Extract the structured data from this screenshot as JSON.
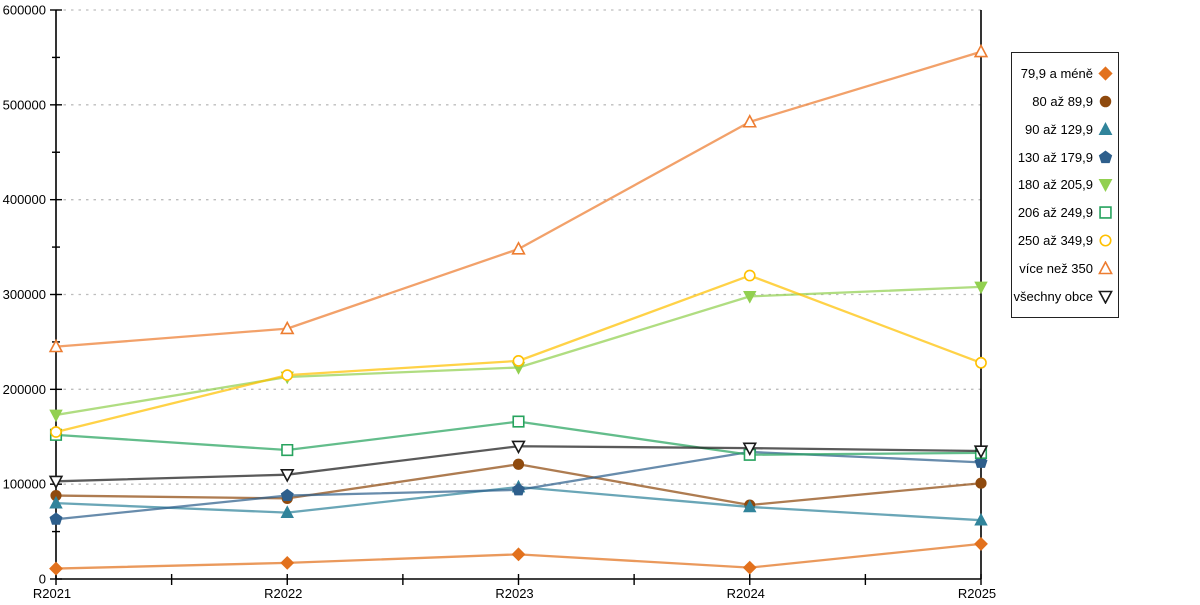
{
  "chart_data": {
    "type": "line",
    "title": "",
    "xlabel": "",
    "ylabel": "",
    "categories": [
      "R2021",
      "R2022",
      "R2023",
      "R2024",
      "R2025"
    ],
    "series": [
      {
        "name": "79,9 a méně",
        "marker": "diamond",
        "filled": true,
        "color": "#E2711D",
        "values": [
          11000,
          17000,
          26000,
          12000,
          37000
        ]
      },
      {
        "name": "80 až 89,9",
        "marker": "circle",
        "filled": true,
        "color": "#8F4A0E",
        "values": [
          88000,
          85000,
          121000,
          78000,
          101000
        ]
      },
      {
        "name": "90 až 129,9",
        "marker": "triangle-up",
        "filled": true,
        "color": "#31849B",
        "values": [
          80000,
          70000,
          97000,
          76000,
          62000
        ]
      },
      {
        "name": "130 až 179,9",
        "marker": "pentagon",
        "filled": true,
        "color": "#2E5F8C",
        "values": [
          63000,
          88000,
          94000,
          134000,
          123000
        ]
      },
      {
        "name": "180 až 205,9",
        "marker": "triangle-down",
        "filled": true,
        "color": "#92D050",
        "values": [
          173000,
          213000,
          223000,
          298000,
          308000
        ]
      },
      {
        "name": "206 až 249,9",
        "marker": "square",
        "filled": false,
        "color": "#27A35E",
        "values": [
          152000,
          136000,
          166000,
          131000,
          133000
        ]
      },
      {
        "name": "250 až 349,9",
        "marker": "circle",
        "filled": false,
        "color": "#FFC000",
        "values": [
          155000,
          215000,
          230000,
          320000,
          228000
        ]
      },
      {
        "name": "více než 350",
        "marker": "triangle-up",
        "filled": false,
        "color": "#ED7D31",
        "values": [
          245000,
          264000,
          348000,
          482000,
          556000
        ]
      },
      {
        "name": "všechny obce",
        "marker": "triangle-down",
        "filled": false,
        "color": "#1A1A1A",
        "values": [
          103000,
          110000,
          140000,
          138000,
          135000
        ]
      }
    ],
    "ylim": [
      0,
      600000
    ],
    "ytick_step": 100000,
    "yminor_step": 50000,
    "y_tick_labels": [
      "0",
      "100000",
      "200000",
      "300000",
      "400000",
      "500000",
      "600000"
    ],
    "grid": "dashed horizontal gridlines at major y ticks",
    "gridline_color": "#bdbdbd",
    "axis_color": "#000000",
    "legend_position": "right",
    "x_minor_ticks": "midway between year ticks"
  }
}
